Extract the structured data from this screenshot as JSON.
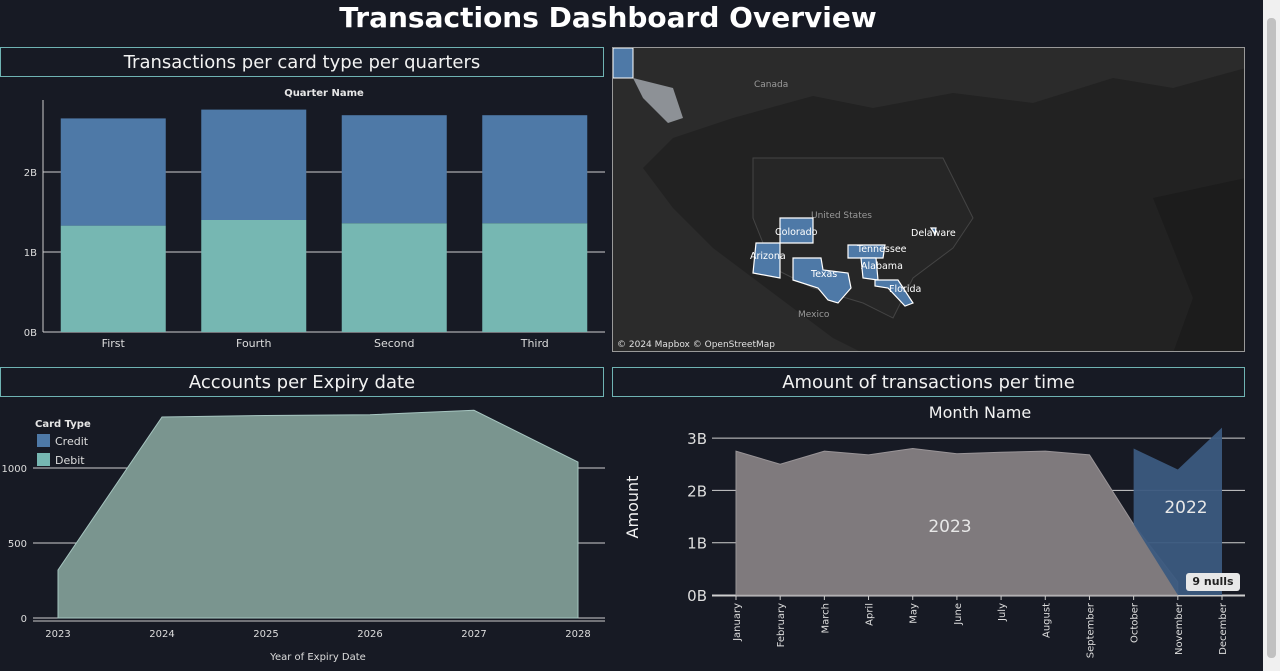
{
  "dashboard": {
    "title": "Transactions Dashboard Overview"
  },
  "panels": {
    "card_quarters": "Transactions per card type per quarters",
    "expiry": "Accounts per Expiry date",
    "time": "Amount of transactions per time"
  },
  "map": {
    "attribution": "© 2024 Mapbox © OpenStreetMap",
    "labels": [
      "Canada",
      "United States",
      "Mexico"
    ],
    "states": [
      "Colorado",
      "Arizona",
      "Texas",
      "Tennessee",
      "Alabama",
      "Florida",
      "Delaware"
    ],
    "state_color": "#4e79a7"
  },
  "nulls_badge": "9 nulls",
  "colors": {
    "credit": "#4e79a7",
    "debit": "#76b7b2",
    "year2023": "#7f7a7d",
    "year2022": "#3b5a80"
  },
  "chart_data": [
    {
      "type": "bar",
      "stacked": true,
      "title": "Quarter Name",
      "categories": [
        "First",
        "Fourth",
        "Second",
        "Third"
      ],
      "series": [
        {
          "name": "Debit",
          "values": [
            1.33,
            1.4,
            1.36,
            1.36
          ]
        },
        {
          "name": "Credit",
          "values": [
            1.34,
            1.38,
            1.35,
            1.35
          ]
        }
      ],
      "yticks": [
        "0B",
        "1B",
        "2B"
      ],
      "ylim": [
        0,
        2.9
      ]
    },
    {
      "type": "area",
      "xlabel": "Year of Expiry Date",
      "x": [
        "2023",
        "2024",
        "2025",
        "2026",
        "2027",
        "2028"
      ],
      "values": [
        320,
        1340,
        1350,
        1355,
        1385,
        1040
      ],
      "yticks": [
        "0",
        "500",
        "1000"
      ],
      "ylim": [
        0,
        1420
      ],
      "legend": {
        "title": "Card Type",
        "items": [
          "Credit",
          "Debit"
        ]
      }
    },
    {
      "type": "area",
      "title": "Month Name",
      "ylabel": "Amount",
      "x": [
        "January",
        "February",
        "March",
        "April",
        "May",
        "June",
        "July",
        "August",
        "September",
        "October",
        "November",
        "December"
      ],
      "series": [
        {
          "name": "2023",
          "values": [
            2.75,
            2.5,
            2.75,
            2.68,
            2.8,
            2.7,
            2.73,
            2.75,
            2.68,
            1.35,
            null,
            null
          ]
        },
        {
          "name": "2022",
          "values": [
            null,
            null,
            null,
            null,
            null,
            null,
            null,
            null,
            null,
            2.8,
            2.4,
            3.2
          ]
        }
      ],
      "yticks": [
        "0B",
        "1B",
        "2B",
        "3B"
      ],
      "ylim": [
        0,
        3.25
      ]
    }
  ]
}
